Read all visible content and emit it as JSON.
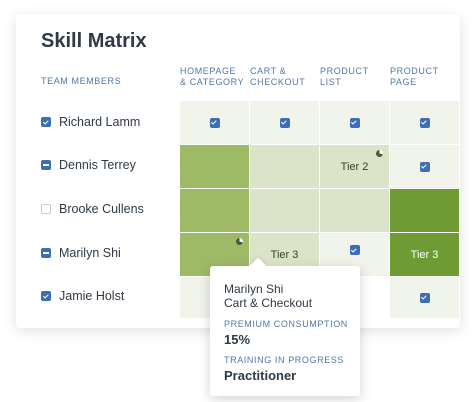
{
  "title": "Skill Matrix",
  "team_header": "TEAM MEMBERS",
  "columns": [
    {
      "line1": "HOMEPAGE",
      "line2": "& CATEGORY"
    },
    {
      "line1": "CART &",
      "line2": "CHECKOUT"
    },
    {
      "line1": "PRODUCT",
      "line2": "LIST"
    },
    {
      "line1": "PRODUCT",
      "line2": "PAGE"
    }
  ],
  "rows": [
    {
      "name": "Richard Lamm",
      "checkbox": "checked"
    },
    {
      "name": "Dennis Terrey",
      "checkbox": "partial"
    },
    {
      "name": "Brooke Cullens",
      "checkbox": "empty"
    },
    {
      "name": "Marilyn Shi",
      "checkbox": "partial"
    },
    {
      "name": "Jamie Holst",
      "checkbox": "checked"
    }
  ],
  "cells": {
    "r1c3": "Tier 2",
    "r3c2": "Tier 3",
    "r3c4": "Tier 3"
  },
  "colors": {
    "very_light": "#f1f4ea",
    "light": "#dbe4c8",
    "medium": "#9fba67",
    "dark": "#6f9b35",
    "accent": "#3d6db5"
  },
  "tooltip": {
    "name": "Marilyn Shi",
    "skill": "Cart & Checkout",
    "label1": "PREMIUM CONSUMPTION",
    "value1": "15%",
    "label2": "TRAINING IN PROGRESS",
    "value2": "Practitioner"
  }
}
